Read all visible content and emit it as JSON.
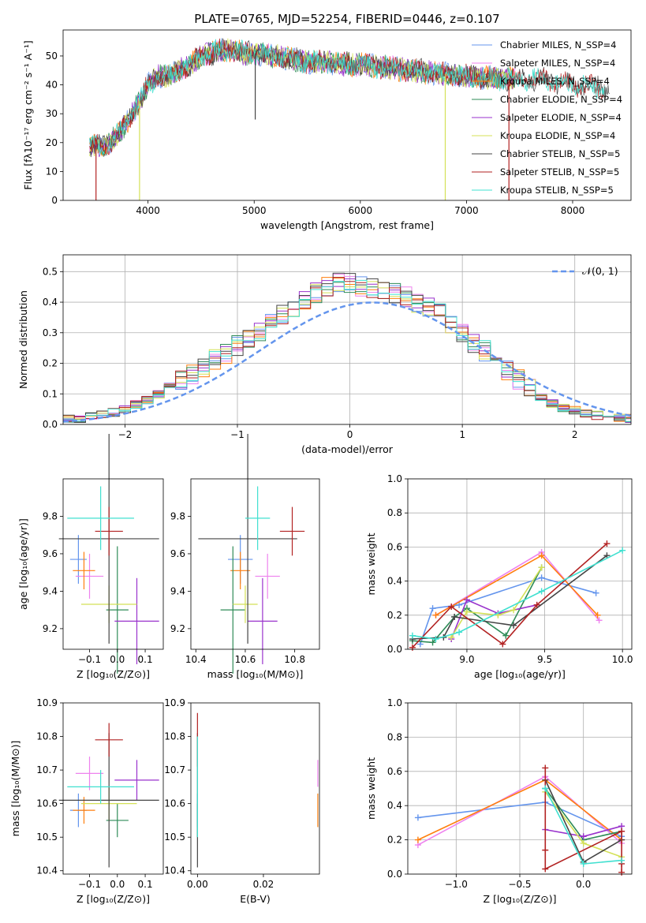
{
  "colors": {
    "Chabrier MILES": "#6495ed",
    "Salpeter MILES": "#ee82ee",
    "Kroupa MILES": "#ff7f0e",
    "Chabrier ELODIE": "#2e8b57",
    "Salpeter ELODIE": "#9932cc",
    "Kroupa ELODIE": "#d4e157",
    "Chabrier STELIB": "#444444",
    "Salpeter STELIB": "#b22222",
    "Kroupa STELIB": "#40e0d0"
  },
  "chart_data": [
    {
      "type": "line",
      "title": "PLATE=0765, MJD=52254, FIBERID=0446, z=0.107",
      "xlabel": "wavelength [Angstrom, rest frame]",
      "ylabel": "Flux [fλ10⁻¹⁷ erg cm⁻² s⁻¹ A⁻¹]",
      "xlim": [
        3200,
        8550
      ],
      "ylim": [
        0,
        59
      ],
      "xticks": [
        4000,
        5000,
        6000,
        7000,
        8000
      ],
      "yticks": [
        0,
        10,
        20,
        30,
        40,
        50
      ],
      "legend_position": "top-right",
      "legend": [
        "Chabrier MILES, N_SSP=4",
        "Salpeter MILES, N_SSP=4",
        "Kroupa MILES, N_SSP=4",
        "Chabrier ELODIE, N_SSP=4",
        "Salpeter ELODIE, N_SSP=4",
        "Kroupa ELODIE, N_SSP=4",
        "Chabrier STELIB, N_SSP=5",
        "Salpeter STELIB, N_SSP=5",
        "Kroupa STELIB, N_SSP=5"
      ],
      "continuum": {
        "x": [
          3450,
          3600,
          3700,
          3800,
          3900,
          3950,
          4000,
          4100,
          4200,
          4300,
          4400,
          4500,
          4600,
          4700,
          4800,
          4900,
          5000,
          5200,
          5500,
          6000,
          6500,
          7000,
          7400,
          7700,
          8000,
          8350
        ],
        "y": [
          19,
          19,
          22,
          27,
          33,
          36,
          40,
          43,
          43,
          45,
          47,
          50,
          51,
          52,
          52,
          51,
          51,
          50,
          48,
          47,
          45,
          43,
          42,
          42,
          40,
          39
        ]
      },
      "drops": [
        {
          "series": "Salpeter STELIB",
          "x": 3510,
          "to": 0
        },
        {
          "series": "Kroupa ELODIE",
          "x": 3920,
          "to": 0
        },
        {
          "series": "Chabrier STELIB",
          "x": 5010,
          "to": 28
        },
        {
          "series": "Kroupa ELODIE",
          "x": 6800,
          "to": 0
        },
        {
          "series": "Salpeter STELIB",
          "x": 7400,
          "to": 0
        }
      ]
    },
    {
      "type": "histogram",
      "xlabel": "(data-model)/error",
      "ylabel": "Normed distribution",
      "xlim": [
        -2.55,
        2.5
      ],
      "ylim": [
        0,
        0.555
      ],
      "xticks": [
        -2,
        -1,
        0,
        1,
        2
      ],
      "yticks": [
        0.0,
        0.1,
        0.2,
        0.3,
        0.4,
        0.5
      ],
      "legend": [
        "𝒩(0, 1)"
      ],
      "legend_position": "top-right",
      "grid": true,
      "bin_edges_start": -2.55,
      "bin_width": 0.1,
      "base_values": [
        0.02,
        0.02,
        0.025,
        0.03,
        0.04,
        0.05,
        0.065,
        0.08,
        0.1,
        0.12,
        0.14,
        0.16,
        0.19,
        0.21,
        0.23,
        0.26,
        0.28,
        0.3,
        0.33,
        0.36,
        0.38,
        0.41,
        0.43,
        0.45,
        0.46,
        0.46,
        0.45,
        0.45,
        0.44,
        0.43,
        0.42,
        0.4,
        0.38,
        0.36,
        0.33,
        0.3,
        0.27,
        0.24,
        0.21,
        0.18,
        0.15,
        0.12,
        0.09,
        0.07,
        0.055,
        0.045,
        0.035,
        0.03,
        0.025,
        0.02,
        0.02
      ]
    },
    {
      "type": "errorbar",
      "xlabel": "Z [log₁₀(Z/Z⊙)]",
      "ylabel": "age  [log₁₀(age/yr)]",
      "xlim": [
        -0.195,
        0.165
      ],
      "ylim": [
        9.09,
        10.0
      ],
      "xticks": [
        -0.1,
        0.0,
        0.1
      ],
      "yticks": [
        9.2,
        9.4,
        9.6,
        9.8
      ],
      "points": [
        {
          "series": "Chabrier MILES",
          "x": -0.14,
          "xerr": 0.03,
          "y": 9.57,
          "yerr": 0.13
        },
        {
          "series": "Salpeter MILES",
          "x": -0.1,
          "xerr": 0.05,
          "y": 9.48,
          "yerr": 0.12
        },
        {
          "series": "Kroupa MILES",
          "x": -0.12,
          "xerr": 0.04,
          "y": 9.51,
          "yerr": 0.1
        },
        {
          "series": "Chabrier ELODIE",
          "x": 0.0,
          "xerr": 0.04,
          "y": 9.3,
          "yerr": 0.34
        },
        {
          "series": "Salpeter ELODIE",
          "x": 0.07,
          "xerr": 0.08,
          "y": 9.24,
          "yerr": 0.23
        },
        {
          "series": "Kroupa ELODIE",
          "x": -0.03,
          "xerr": 0.1,
          "y": 9.33,
          "yerr": 0.1
        },
        {
          "series": "Chabrier STELIB",
          "x": -0.03,
          "xerr": 0.18,
          "y": 9.68,
          "yerr": 0.56
        },
        {
          "series": "Salpeter STELIB",
          "x": -0.03,
          "xerr": 0.05,
          "y": 9.72,
          "yerr": 0.13
        },
        {
          "series": "Kroupa STELIB",
          "x": -0.06,
          "xerr": 0.12,
          "y": 9.79,
          "yerr": 0.17
        }
      ]
    },
    {
      "type": "errorbar",
      "xlabel": "mass [log₁₀(M/M⊙)]",
      "ylabel": "",
      "xlim": [
        10.38,
        10.9
      ],
      "ylim": [
        9.09,
        10.0
      ],
      "xticks": [
        10.4,
        10.6,
        10.8
      ],
      "yticks": [
        9.2,
        9.4,
        9.6,
        9.8
      ],
      "points": [
        {
          "series": "Chabrier MILES",
          "x": 10.58,
          "xerr": 0.05,
          "y": 9.57,
          "yerr": 0.13
        },
        {
          "series": "Salpeter MILES",
          "x": 10.69,
          "xerr": 0.05,
          "y": 9.48,
          "yerr": 0.12
        },
        {
          "series": "Kroupa MILES",
          "x": 10.58,
          "xerr": 0.04,
          "y": 9.51,
          "yerr": 0.1
        },
        {
          "series": "Chabrier ELODIE",
          "x": 10.55,
          "xerr": 0.05,
          "y": 9.3,
          "yerr": 0.34
        },
        {
          "series": "Salpeter ELODIE",
          "x": 10.67,
          "xerr": 0.06,
          "y": 9.24,
          "yerr": 0.23
        },
        {
          "series": "Kroupa ELODIE",
          "x": 10.6,
          "xerr": 0.05,
          "y": 9.33,
          "yerr": 0.1
        },
        {
          "series": "Chabrier STELIB",
          "x": 10.61,
          "xerr": 0.2,
          "y": 9.68,
          "yerr": 0.56
        },
        {
          "series": "Salpeter STELIB",
          "x": 10.79,
          "xerr": 0.05,
          "y": 9.72,
          "yerr": 0.13
        },
        {
          "series": "Kroupa STELIB",
          "x": 10.65,
          "xerr": 0.05,
          "y": 9.79,
          "yerr": 0.17
        }
      ]
    },
    {
      "type": "line",
      "xlabel": "age  [log₁₀(age/yr)]",
      "ylabel": "mass weight",
      "xlim": [
        8.62,
        10.06
      ],
      "ylim": [
        0,
        1.0
      ],
      "xticks": [
        9.0,
        9.5,
        10.0
      ],
      "yticks": [
        0.0,
        0.2,
        0.4,
        0.6,
        0.8,
        1.0
      ],
      "grid": true,
      "series": [
        {
          "name": "Chabrier MILES",
          "x": [
            8.7,
            8.78,
            8.95,
            9.48,
            9.83
          ],
          "y": [
            0.03,
            0.24,
            0.26,
            0.42,
            0.33
          ]
        },
        {
          "name": "Salpeter MILES",
          "x": [
            8.8,
            9.48,
            9.85
          ],
          "y": [
            0.2,
            0.57,
            0.17
          ]
        },
        {
          "name": "Kroupa MILES",
          "x": [
            8.8,
            9.48,
            9.84
          ],
          "y": [
            0.2,
            0.55,
            0.2
          ]
        },
        {
          "name": "Chabrier ELODIE",
          "x": [
            8.65,
            8.78,
            8.92,
            9.0,
            9.25,
            9.48
          ],
          "y": [
            0.05,
            0.04,
            0.19,
            0.24,
            0.08,
            0.48
          ]
        },
        {
          "name": "Salpeter ELODIE",
          "x": [
            8.9,
            9.0,
            9.2,
            9.45
          ],
          "y": [
            0.06,
            0.29,
            0.21,
            0.26
          ]
        },
        {
          "name": "Kroupa ELODIE",
          "x": [
            8.9,
            9.0,
            9.2,
            9.3,
            9.48
          ],
          "y": [
            0.07,
            0.22,
            0.2,
            0.23,
            0.48
          ]
        },
        {
          "name": "Chabrier STELIB",
          "x": [
            8.65,
            8.85,
            8.92,
            9.3,
            9.9
          ],
          "y": [
            0.06,
            0.07,
            0.19,
            0.14,
            0.55
          ]
        },
        {
          "name": "Salpeter STELIB",
          "x": [
            8.65,
            8.9,
            9.23,
            9.45,
            9.9
          ],
          "y": [
            0.01,
            0.25,
            0.03,
            0.26,
            0.62
          ]
        },
        {
          "name": "Kroupa STELIB",
          "x": [
            8.65,
            8.8,
            8.95,
            9.48,
            10.0
          ],
          "y": [
            0.08,
            0.06,
            0.1,
            0.34,
            0.58
          ]
        }
      ]
    },
    {
      "type": "errorbar",
      "xlabel": "Z [log₁₀(Z/Z⊙)]",
      "ylabel": "mass [log₁₀(M/M⊙)]",
      "xlim": [
        -0.195,
        0.165
      ],
      "ylim": [
        10.39,
        10.9
      ],
      "xticks": [
        -0.1,
        0.0,
        0.1
      ],
      "yticks": [
        10.4,
        10.5,
        10.6,
        10.7,
        10.8,
        10.9
      ],
      "points": [
        {
          "series": "Chabrier MILES",
          "x": -0.14,
          "xerr": 0.03,
          "y": 10.58,
          "yerr": 0.05
        },
        {
          "series": "Salpeter MILES",
          "x": -0.1,
          "xerr": 0.05,
          "y": 10.69,
          "yerr": 0.05
        },
        {
          "series": "Kroupa MILES",
          "x": -0.12,
          "xerr": 0.04,
          "y": 10.58,
          "yerr": 0.04
        },
        {
          "series": "Chabrier ELODIE",
          "x": 0.0,
          "xerr": 0.04,
          "y": 10.55,
          "yerr": 0.05
        },
        {
          "series": "Salpeter ELODIE",
          "x": 0.07,
          "xerr": 0.08,
          "y": 10.67,
          "yerr": 0.06
        },
        {
          "series": "Kroupa ELODIE",
          "x": -0.03,
          "xerr": 0.1,
          "y": 10.6,
          "yerr": 0.05
        },
        {
          "series": "Chabrier STELIB",
          "x": -0.03,
          "xerr": 0.18,
          "y": 10.61,
          "yerr": 0.2
        },
        {
          "series": "Salpeter STELIB",
          "x": -0.03,
          "xerr": 0.05,
          "y": 10.79,
          "yerr": 0.05
        },
        {
          "series": "Kroupa STELIB",
          "x": -0.06,
          "xerr": 0.12,
          "y": 10.65,
          "yerr": 0.05
        }
      ]
    },
    {
      "type": "errorbar",
      "xlabel": "E(B-V)",
      "ylabel": "",
      "xlim": [
        -0.002,
        0.037
      ],
      "ylim": [
        10.39,
        10.9
      ],
      "xticks": [
        0.0,
        0.02
      ],
      "yticks": [
        10.4,
        10.5,
        10.6,
        10.7,
        10.8,
        10.9
      ],
      "points": [
        {
          "series": "Chabrier MILES",
          "x": 0.0,
          "xerr": 0,
          "y": 10.58,
          "yerr": 0.05
        },
        {
          "series": "Chabrier ELODIE",
          "x": 0.0,
          "xerr": 0,
          "y": 10.55,
          "yerr": 0.05
        },
        {
          "series": "Chabrier STELIB",
          "x": 0.0,
          "xerr": 0,
          "y": 10.61,
          "yerr": 0.2
        },
        {
          "series": "Salpeter STELIB",
          "x": 0.0,
          "xerr": 0,
          "y": 10.79,
          "yerr": 0.08
        },
        {
          "series": "Kroupa STELIB",
          "x": 0.0,
          "xerr": 0,
          "y": 10.65,
          "yerr": 0.15
        },
        {
          "series": "Salpeter MILES",
          "x": 0.0365,
          "xerr": 0,
          "y": 10.69,
          "yerr": 0.04
        },
        {
          "series": "Kroupa MILES",
          "x": 0.0365,
          "xerr": 0,
          "y": 10.58,
          "yerr": 0.05
        }
      ]
    },
    {
      "type": "line",
      "xlabel": "Z [log₁₀(Z/Z⊙)]",
      "ylabel": "mass weight",
      "xlim": [
        -1.38,
        0.38
      ],
      "ylim": [
        0,
        1.0
      ],
      "xticks": [
        -1.0,
        -0.5,
        0.0
      ],
      "yticks": [
        0.0,
        0.2,
        0.4,
        0.6,
        0.8,
        1.0
      ],
      "grid": true,
      "series": [
        {
          "name": "Chabrier MILES",
          "x": [
            -1.3,
            -0.3,
            0.3
          ],
          "y": [
            0.33,
            0.42,
            0.22
          ]
        },
        {
          "name": "Salpeter MILES",
          "x": [
            -1.3,
            -0.3,
            0.3
          ],
          "y": [
            0.17,
            0.57,
            0.18
          ]
        },
        {
          "name": "Kroupa MILES",
          "x": [
            -1.3,
            -0.3,
            0.3
          ],
          "y": [
            0.2,
            0.55,
            0.2
          ]
        },
        {
          "name": "Chabrier ELODIE",
          "x": [
            -0.3,
            0.0,
            0.3
          ],
          "y": [
            0.5,
            0.2,
            0.25
          ]
        },
        {
          "name": "Salpeter ELODIE",
          "x": [
            -0.3,
            0.0,
            0.3
          ],
          "y": [
            0.26,
            0.22,
            0.28
          ]
        },
        {
          "name": "Kroupa ELODIE",
          "x": [
            -0.3,
            0.0,
            0.3
          ],
          "y": [
            0.48,
            0.18,
            0.1
          ]
        },
        {
          "name": "Chabrier STELIB",
          "x": [
            -0.3,
            0.0,
            0.3
          ],
          "y": [
            0.55,
            0.07,
            0.2
          ]
        },
        {
          "name": "Salpeter STELIB",
          "x": [
            -0.3,
            -0.3,
            -0.3,
            0.3,
            0.3,
            0.3
          ],
          "y": [
            0.62,
            0.14,
            0.03,
            0.25,
            0.06,
            0.01
          ]
        },
        {
          "name": "Kroupa STELIB",
          "x": [
            -0.3,
            0.0,
            0.3
          ],
          "y": [
            0.5,
            0.06,
            0.08
          ]
        }
      ]
    }
  ]
}
